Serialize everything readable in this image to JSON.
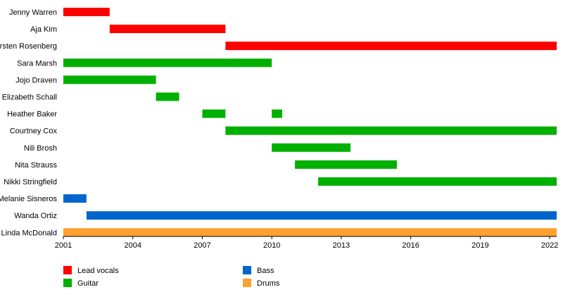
{
  "chart_data": {
    "type": "timeline",
    "title": "",
    "xlabel": "",
    "ylabel": "",
    "x_range": [
      2001,
      2022.3
    ],
    "x_ticks": [
      2001,
      2004,
      2007,
      2010,
      2013,
      2016,
      2019,
      2022
    ],
    "grid": false,
    "legend_position": "bottom",
    "roles": [
      {
        "key": "lead_vocals",
        "label": "Lead vocals",
        "color": "#ff0000"
      },
      {
        "key": "guitar",
        "label": "Guitar",
        "color": "#00b000"
      },
      {
        "key": "bass",
        "label": "Bass",
        "color": "#0066cc"
      },
      {
        "key": "drums",
        "label": "Drums",
        "color": "#ffa030"
      }
    ],
    "members": [
      {
        "name": "Jenny Warren",
        "bars": [
          {
            "role": "lead_vocals",
            "start": 2001.0,
            "end": 2003.0
          }
        ]
      },
      {
        "name": "Aja Kim",
        "bars": [
          {
            "role": "lead_vocals",
            "start": 2003.0,
            "end": 2008.0
          }
        ]
      },
      {
        "name": "Kirsten Rosenberg",
        "bars": [
          {
            "role": "lead_vocals",
            "start": 2008.0,
            "end": 2022.3
          }
        ]
      },
      {
        "name": "Sara Marsh",
        "bars": [
          {
            "role": "guitar",
            "start": 2001.0,
            "end": 2010.0
          }
        ]
      },
      {
        "name": "Jojo Draven",
        "bars": [
          {
            "role": "guitar",
            "start": 2001.0,
            "end": 2005.0
          }
        ]
      },
      {
        "name": "Elizabeth Schall",
        "bars": [
          {
            "role": "guitar",
            "start": 2005.0,
            "end": 2006.0
          }
        ]
      },
      {
        "name": "Heather Baker",
        "bars": [
          {
            "role": "guitar",
            "start": 2007.0,
            "end": 2008.0
          },
          {
            "role": "guitar",
            "start": 2010.0,
            "end": 2010.45
          }
        ]
      },
      {
        "name": "Courtney Cox",
        "bars": [
          {
            "role": "guitar",
            "start": 2008.0,
            "end": 2022.3
          }
        ]
      },
      {
        "name": "Nili Brosh",
        "bars": [
          {
            "role": "guitar",
            "start": 2010.0,
            "end": 2013.4
          }
        ]
      },
      {
        "name": "Nita Strauss",
        "bars": [
          {
            "role": "guitar",
            "start": 2011.0,
            "end": 2015.4
          }
        ]
      },
      {
        "name": "Nikki Stringfield",
        "bars": [
          {
            "role": "guitar",
            "start": 2012.0,
            "end": 2022.3
          }
        ]
      },
      {
        "name": "Melanie Sisneros",
        "bars": [
          {
            "role": "bass",
            "start": 2001.0,
            "end": 2002.0
          }
        ]
      },
      {
        "name": "Wanda Ortiz",
        "bars": [
          {
            "role": "bass",
            "start": 2002.0,
            "end": 2022.3
          }
        ]
      },
      {
        "name": "Linda McDonald",
        "bars": [
          {
            "role": "drums",
            "start": 2001.0,
            "end": 2022.3
          }
        ]
      }
    ]
  }
}
